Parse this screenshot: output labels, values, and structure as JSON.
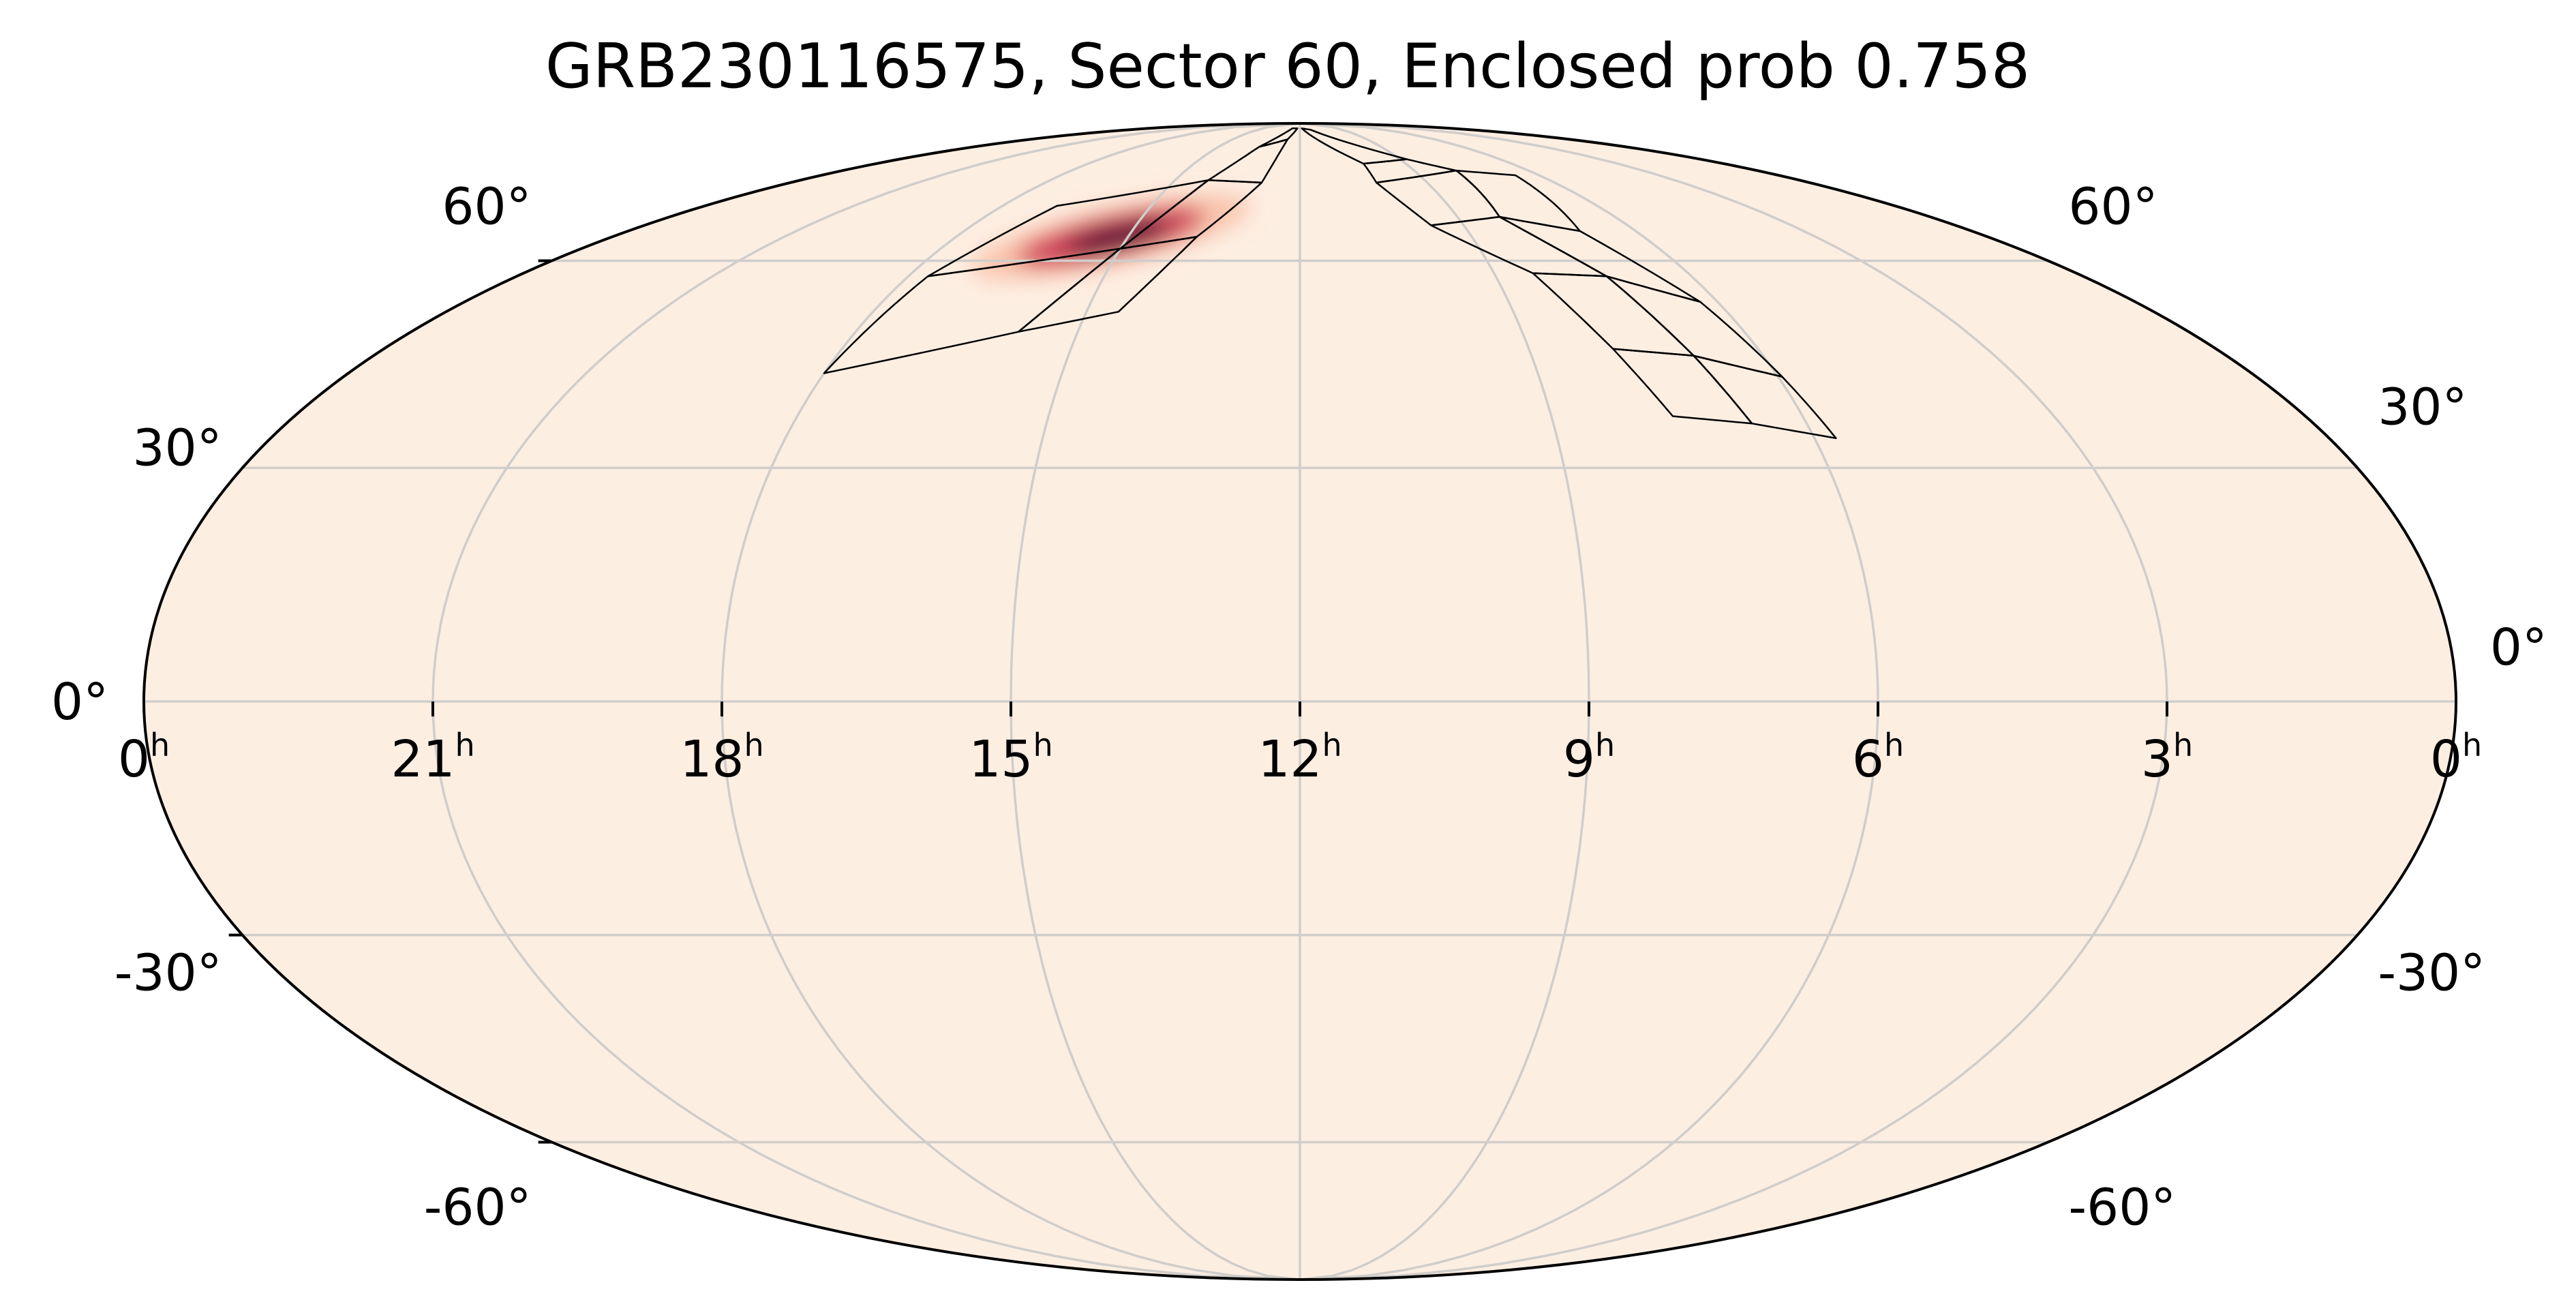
{
  "chart_data": {
    "type": "heatmap",
    "projection": "mollweide",
    "title": "GRB230116575, Sector 60, Enclosed prob 0.758",
    "x_ticks": [
      {
        "ra_hours": 24,
        "label": "0",
        "sup": "h"
      },
      {
        "ra_hours": 21,
        "label": "21",
        "sup": "h"
      },
      {
        "ra_hours": 18,
        "label": "18",
        "sup": "h"
      },
      {
        "ra_hours": 15,
        "label": "15",
        "sup": "h"
      },
      {
        "ra_hours": 12,
        "label": "12",
        "sup": "h"
      },
      {
        "ra_hours": 9,
        "label": "9",
        "sup": "h"
      },
      {
        "ra_hours": 6,
        "label": "6",
        "sup": "h"
      },
      {
        "ra_hours": 3,
        "label": "3",
        "sup": "h"
      },
      {
        "ra_hours": 0,
        "label": "0",
        "sup": "h"
      }
    ],
    "y_ticks": [
      {
        "dec": 60,
        "label": "60°"
      },
      {
        "dec": 30,
        "label": "30°"
      },
      {
        "dec": 0,
        "label": "0°"
      },
      {
        "dec": -30,
        "label": "-30°"
      },
      {
        "dec": -60,
        "label": "-60°"
      }
    ],
    "ra_range_hours": [
      0,
      24
    ],
    "dec_range": [
      -90,
      90
    ],
    "ra_increases": "leftward",
    "grid": true,
    "grid_ra_hours": [
      3,
      6,
      9,
      15,
      18,
      21
    ],
    "grid_dec": [
      -60,
      -30,
      0,
      30,
      60
    ],
    "colormap": "rocket_r",
    "colors": {
      "background": "#fdeee2",
      "grid": "#d0cdca",
      "footprint_outline": "#000000",
      "peak": "#3b0f2e",
      "mid": "#c41e48",
      "low": "#f6a07e"
    },
    "probability_peak": {
      "ra_hours": 15.3,
      "dec": 64
    },
    "sector_footprint": {
      "left_arm_cells": [
        [
          [
            15.8,
            49.0
          ],
          [
            18.0,
            43.0
          ],
          [
            17.7,
            57.5
          ],
          [
            15.0,
            62.0
          ]
        ],
        [
          [
            14.55,
            52.0
          ],
          [
            15.8,
            49.0
          ],
          [
            15.0,
            62.0
          ],
          [
            13.8,
            64.0
          ]
        ],
        [
          [
            15.0,
            62.0
          ],
          [
            17.7,
            57.5
          ],
          [
            16.9,
            69.5
          ],
          [
            14.2,
            74.5
          ]
        ],
        [
          [
            13.8,
            64.0
          ],
          [
            15.0,
            62.0
          ],
          [
            14.2,
            74.5
          ],
          [
            12.9,
            74.0
          ]
        ],
        [
          [
            12.9,
            74.0
          ],
          [
            14.2,
            74.5
          ],
          [
            13.5,
            82.0
          ],
          [
            12.55,
            84.0
          ]
        ],
        [
          [
            12.55,
            84.0
          ],
          [
            13.5,
            82.0
          ],
          [
            12.6,
            87.5
          ],
          [
            12.2,
            87.5
          ]
        ]
      ],
      "right_arm_cells": [
        [
          [
            10.2,
            78.0
          ],
          [
            11.85,
            87.5
          ],
          [
            11.25,
            87.0
          ],
          [
            8.8,
            79.0
          ]
        ],
        [
          [
            10.2,
            74.0
          ],
          [
            10.2,
            78.0
          ],
          [
            8.8,
            79.0
          ],
          [
            7.9,
            76.5
          ]
        ],
        [
          [
            9.6,
            66.0
          ],
          [
            10.2,
            74.0
          ],
          [
            7.9,
            76.5
          ],
          [
            8.2,
            67.5
          ]
        ],
        [
          [
            8.2,
            67.5
          ],
          [
            7.9,
            76.5
          ],
          [
            6.6,
            75.5
          ],
          [
            7.0,
            65.0
          ]
        ],
        [
          [
            8.4,
            58.0
          ],
          [
            9.6,
            66.0
          ],
          [
            8.2,
            67.5
          ],
          [
            7.3,
            57.5
          ]
        ],
        [
          [
            7.3,
            57.5
          ],
          [
            8.2,
            67.5
          ],
          [
            7.0,
            65.0
          ],
          [
            6.25,
            53.5
          ]
        ],
        [
          [
            7.9,
            46.5
          ],
          [
            8.4,
            58.0
          ],
          [
            7.3,
            57.5
          ],
          [
            6.9,
            45.5
          ]
        ],
        [
          [
            6.9,
            45.5
          ],
          [
            7.3,
            57.5
          ],
          [
            6.25,
            53.5
          ],
          [
            5.95,
            42.5
          ]
        ],
        [
          [
            7.55,
            37.0
          ],
          [
            7.9,
            46.5
          ],
          [
            6.9,
            45.5
          ],
          [
            6.65,
            36.0
          ]
        ],
        [
          [
            6.65,
            36.0
          ],
          [
            6.9,
            45.5
          ],
          [
            5.95,
            42.5
          ],
          [
            5.75,
            34.0
          ]
        ]
      ]
    }
  }
}
